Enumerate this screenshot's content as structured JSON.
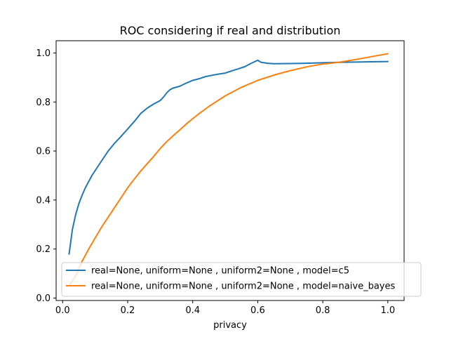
{
  "chart_data": {
    "type": "line",
    "title": "ROC considering if real and distribution",
    "xlabel": "privacy",
    "ylabel": "",
    "xlim": [
      -0.02,
      1.05
    ],
    "ylim": [
      -0.01,
      1.05
    ],
    "xticks": [
      "0.0",
      "0.2",
      "0.4",
      "0.6",
      "0.8",
      "1.0"
    ],
    "xtick_values": [
      0.0,
      0.2,
      0.4,
      0.6,
      0.8,
      1.0
    ],
    "yticks": [
      "0.0",
      "0.2",
      "0.4",
      "0.6",
      "0.8",
      "1.0"
    ],
    "ytick_values": [
      0.0,
      0.2,
      0.4,
      0.6,
      0.8,
      1.0
    ],
    "grid": false,
    "legend_position": "bottom-right",
    "series": [
      {
        "name": "real=None, uniform=None , uniform2=None , model=c5",
        "color": "#1f77b4",
        "points": [
          [
            0.02,
            0.18
          ],
          [
            0.03,
            0.28
          ],
          [
            0.04,
            0.34
          ],
          [
            0.05,
            0.385
          ],
          [
            0.06,
            0.42
          ],
          [
            0.07,
            0.45
          ],
          [
            0.08,
            0.475
          ],
          [
            0.09,
            0.5
          ],
          [
            0.1,
            0.52
          ],
          [
            0.12,
            0.56
          ],
          [
            0.14,
            0.6
          ],
          [
            0.16,
            0.632
          ],
          [
            0.18,
            0.66
          ],
          [
            0.2,
            0.69
          ],
          [
            0.22,
            0.72
          ],
          [
            0.24,
            0.753
          ],
          [
            0.26,
            0.775
          ],
          [
            0.28,
            0.792
          ],
          [
            0.3,
            0.806
          ],
          [
            0.31,
            0.82
          ],
          [
            0.32,
            0.837
          ],
          [
            0.33,
            0.85
          ],
          [
            0.34,
            0.857
          ],
          [
            0.36,
            0.864
          ],
          [
            0.38,
            0.877
          ],
          [
            0.4,
            0.888
          ],
          [
            0.42,
            0.895
          ],
          [
            0.44,
            0.904
          ],
          [
            0.46,
            0.909
          ],
          [
            0.48,
            0.914
          ],
          [
            0.5,
            0.918
          ],
          [
            0.52,
            0.927
          ],
          [
            0.54,
            0.935
          ],
          [
            0.56,
            0.944
          ],
          [
            0.58,
            0.958
          ],
          [
            0.6,
            0.97
          ],
          [
            0.61,
            0.962
          ],
          [
            0.62,
            0.96
          ],
          [
            0.63,
            0.958
          ],
          [
            0.65,
            0.956
          ],
          [
            0.7,
            0.957
          ],
          [
            0.75,
            0.958
          ],
          [
            0.8,
            0.96
          ],
          [
            0.85,
            0.962
          ],
          [
            0.9,
            0.963
          ],
          [
            0.95,
            0.964
          ],
          [
            1.0,
            0.965
          ]
        ]
      },
      {
        "name": "real=None, uniform=None , uniform2=None , model=naive_bayes",
        "color": "#ff7f0e",
        "points": [
          [
            0.02,
            0.05
          ],
          [
            0.04,
            0.09
          ],
          [
            0.06,
            0.15
          ],
          [
            0.08,
            0.2
          ],
          [
            0.1,
            0.245
          ],
          [
            0.12,
            0.29
          ],
          [
            0.14,
            0.33
          ],
          [
            0.16,
            0.37
          ],
          [
            0.18,
            0.41
          ],
          [
            0.2,
            0.45
          ],
          [
            0.22,
            0.485
          ],
          [
            0.24,
            0.518
          ],
          [
            0.26,
            0.548
          ],
          [
            0.28,
            0.578
          ],
          [
            0.3,
            0.61
          ],
          [
            0.32,
            0.638
          ],
          [
            0.34,
            0.663
          ],
          [
            0.36,
            0.686
          ],
          [
            0.38,
            0.71
          ],
          [
            0.4,
            0.732
          ],
          [
            0.42,
            0.753
          ],
          [
            0.45,
            0.782
          ],
          [
            0.5,
            0.825
          ],
          [
            0.55,
            0.86
          ],
          [
            0.6,
            0.888
          ],
          [
            0.65,
            0.91
          ],
          [
            0.7,
            0.928
          ],
          [
            0.75,
            0.943
          ],
          [
            0.8,
            0.955
          ],
          [
            0.85,
            0.962
          ],
          [
            0.9,
            0.973
          ],
          [
            0.95,
            0.985
          ],
          [
            1.0,
            0.997
          ]
        ]
      }
    ]
  }
}
